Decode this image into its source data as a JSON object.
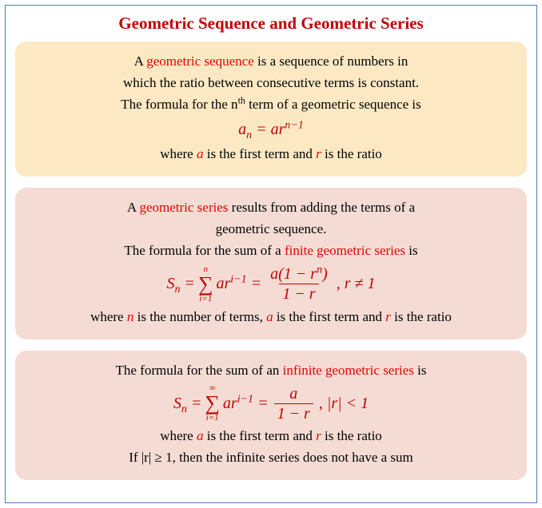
{
  "title": "Geometric Sequence and Geometric Series",
  "card1": {
    "bg": "#fce9c4",
    "line1a": "A ",
    "line1b": "geometric sequence",
    "line1c": " is a sequence of numbers in",
    "line2": "which the ratio between consecutive terms is constant.",
    "line3a": "The formula for the n",
    "line3sup": "th",
    "line3b": " term of a geometric sequence is",
    "formula_lhs": "a",
    "formula_sub": "n",
    "formula_eq": " = ",
    "formula_rhs": "ar",
    "formula_exp": "n−1",
    "line4a": "where ",
    "line4b": "a",
    "line4c": " is the first term and ",
    "line4d": "r",
    "line4e": " is the ratio"
  },
  "card2": {
    "bg": "#f4dcd4",
    "line1a": "A ",
    "line1b": "geometric series",
    "line1c": " results from adding the terms of a",
    "line2": "geometric sequence.",
    "line3a": "The formula for the sum of a ",
    "line3b": "finite geometric series",
    "line3c": " is",
    "f_S": "S",
    "f_Ssub": "n",
    "f_eq": " = ",
    "sigma_top": "n",
    "sigma_sym": "∑",
    "sigma_bot": "i=1",
    "f_term": "ar",
    "f_term_exp": "i−1",
    "frac_num_a": "a",
    "frac_num_b": "(1 − r",
    "frac_num_exp": "n",
    "frac_num_c": ")",
    "frac_den": "1 − r",
    "f_cond": ", r ≠ 1",
    "line4a": "where ",
    "line4b": "n",
    "line4c": " is the number of terms,  ",
    "line4d": "a",
    "line4e": " is the first term and ",
    "line4f": "r",
    "line4g": " is the ratio"
  },
  "card3": {
    "bg": "#f4dcd4",
    "line1a": "The formula for the sum of an ",
    "line1b": "infinite geometric series",
    "line1c": " is",
    "f_S": "S",
    "f_Ssub": "n",
    "f_eq": " = ",
    "sigma_top": "∞",
    "sigma_sym": "∑",
    "sigma_bot": "i=1",
    "f_term": "ar",
    "f_term_exp": "i−1",
    "frac_num": "a",
    "frac_den": "1 − r",
    "f_cond": ", |r| < 1",
    "line2a": "where ",
    "line2b": "a",
    "line2c": " is the first term and ",
    "line2d": "r",
    "line2e": " is the ratio",
    "line3": "If |r| ≥ 1, then the infinite series does not have a sum"
  }
}
